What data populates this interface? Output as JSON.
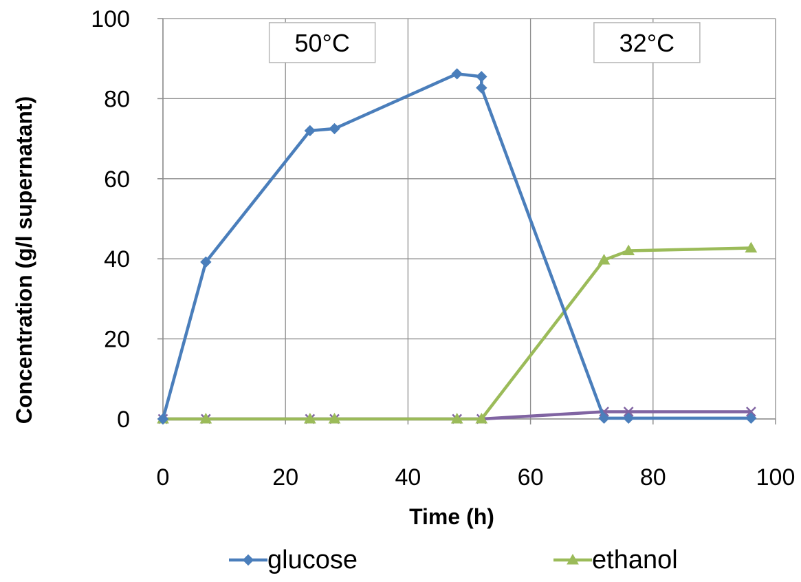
{
  "chart_data": {
    "type": "line",
    "xlabel": "Time (h)",
    "ylabel": "Concentration (g/l supernatant)",
    "xlim": [
      0,
      100
    ],
    "ylim": [
      0,
      100
    ],
    "xticks": [
      0,
      20,
      40,
      60,
      80,
      100
    ],
    "yticks": [
      0,
      20,
      40,
      60,
      80,
      100
    ],
    "grid": true,
    "legend_position": "bottom",
    "annotations": [
      {
        "text": "50°C",
        "x": 26,
        "y": 94
      },
      {
        "text": "32°C",
        "x": 79,
        "y": 94
      }
    ],
    "series": [
      {
        "name": "glucose",
        "color": "#4a7ebb",
        "marker": "diamond",
        "x": [
          0,
          7,
          24,
          28,
          48,
          52,
          52,
          72,
          76,
          96
        ],
        "y": [
          0,
          39.2,
          72,
          72.5,
          86.2,
          85.5,
          82.7,
          0.2,
          0.2,
          0.2
        ]
      },
      {
        "name": "ethanol",
        "color": "#9bbb59",
        "marker": "triangle",
        "x": [
          0,
          7,
          24,
          28,
          48,
          52,
          72,
          76,
          96
        ],
        "y": [
          0,
          0,
          0,
          0,
          0,
          0,
          39.7,
          42,
          42.7
        ]
      },
      {
        "name": "",
        "color": "#8064a2",
        "marker": "x",
        "x": [
          0,
          7,
          24,
          28,
          48,
          52,
          72,
          76,
          96
        ],
        "y": [
          0,
          0,
          0,
          0,
          0,
          0,
          1.8,
          1.8,
          1.8
        ]
      }
    ]
  }
}
